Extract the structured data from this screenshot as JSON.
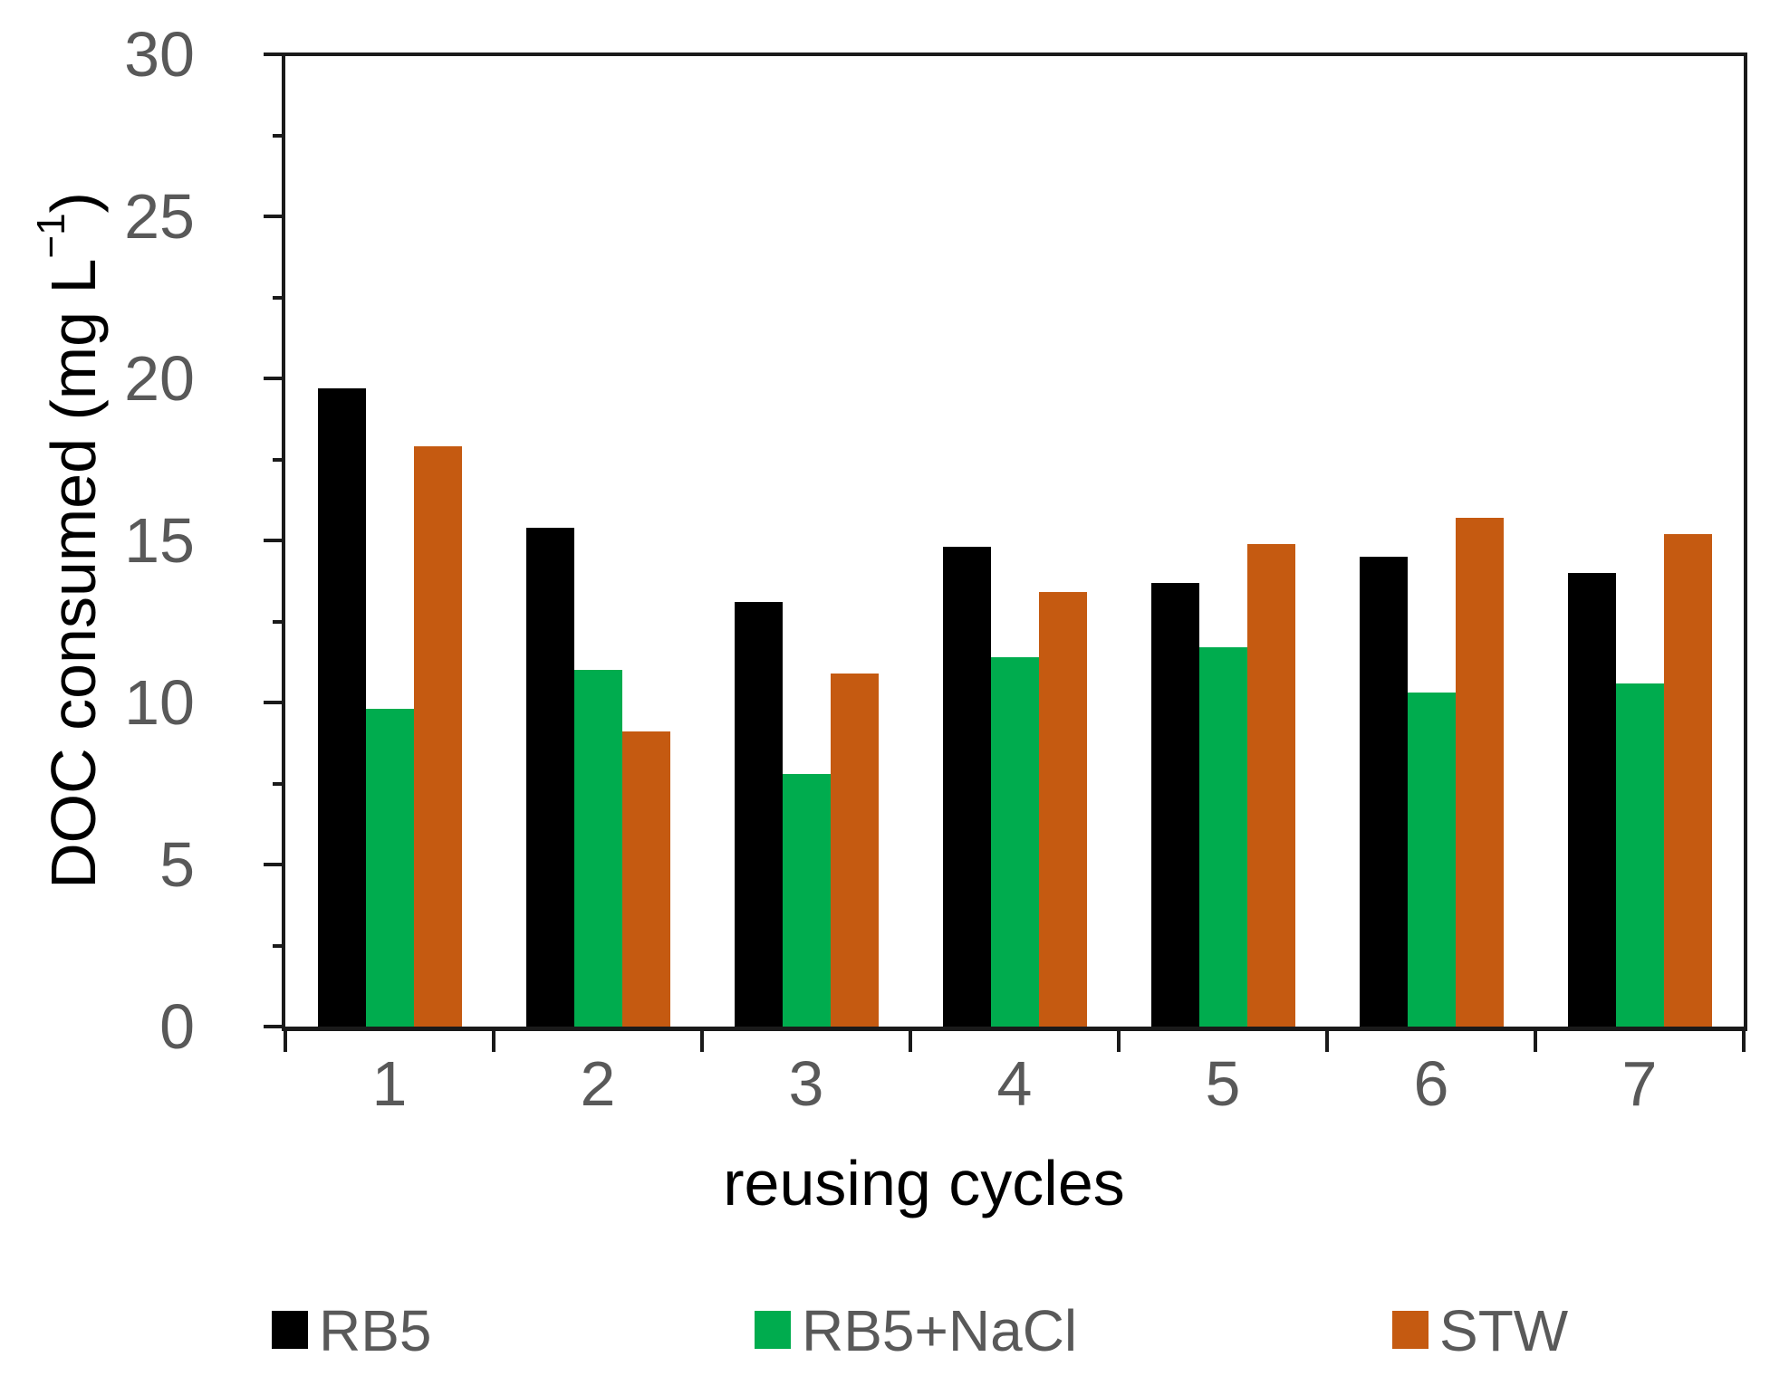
{
  "chart_data": {
    "type": "bar",
    "title": "",
    "categories": [
      "1",
      "2",
      "3",
      "4",
      "5",
      "6",
      "7"
    ],
    "series": [
      {
        "name": "RB5",
        "color": "#000000",
        "values": [
          19.7,
          15.4,
          13.1,
          14.8,
          13.7,
          14.5,
          14.0
        ]
      },
      {
        "name": "RB5+NaCl",
        "color": "#00AC4E",
        "values": [
          9.8,
          11.0,
          7.8,
          11.4,
          11.7,
          10.3,
          10.6
        ]
      },
      {
        "name": "STW",
        "color": "#C55A11",
        "values": [
          17.9,
          9.1,
          10.9,
          13.4,
          14.9,
          15.7,
          15.2
        ]
      }
    ],
    "xlabel": "reusing cycles",
    "ylabel": {
      "prefix": "DOC consumed (mg L",
      "sup": "−1",
      "suffix": ")"
    },
    "ylim": [
      0,
      30
    ],
    "ytick_major": 5,
    "ytick_minor": 2.5,
    "y_tick_labels": [
      "0",
      "5",
      "10",
      "15",
      "20",
      "25",
      "30"
    ],
    "grid": false,
    "legend_position": "bottom",
    "axis_color": "#1a1a1a",
    "tick_label_color": "#595959",
    "legend_text_color": "#595959"
  }
}
